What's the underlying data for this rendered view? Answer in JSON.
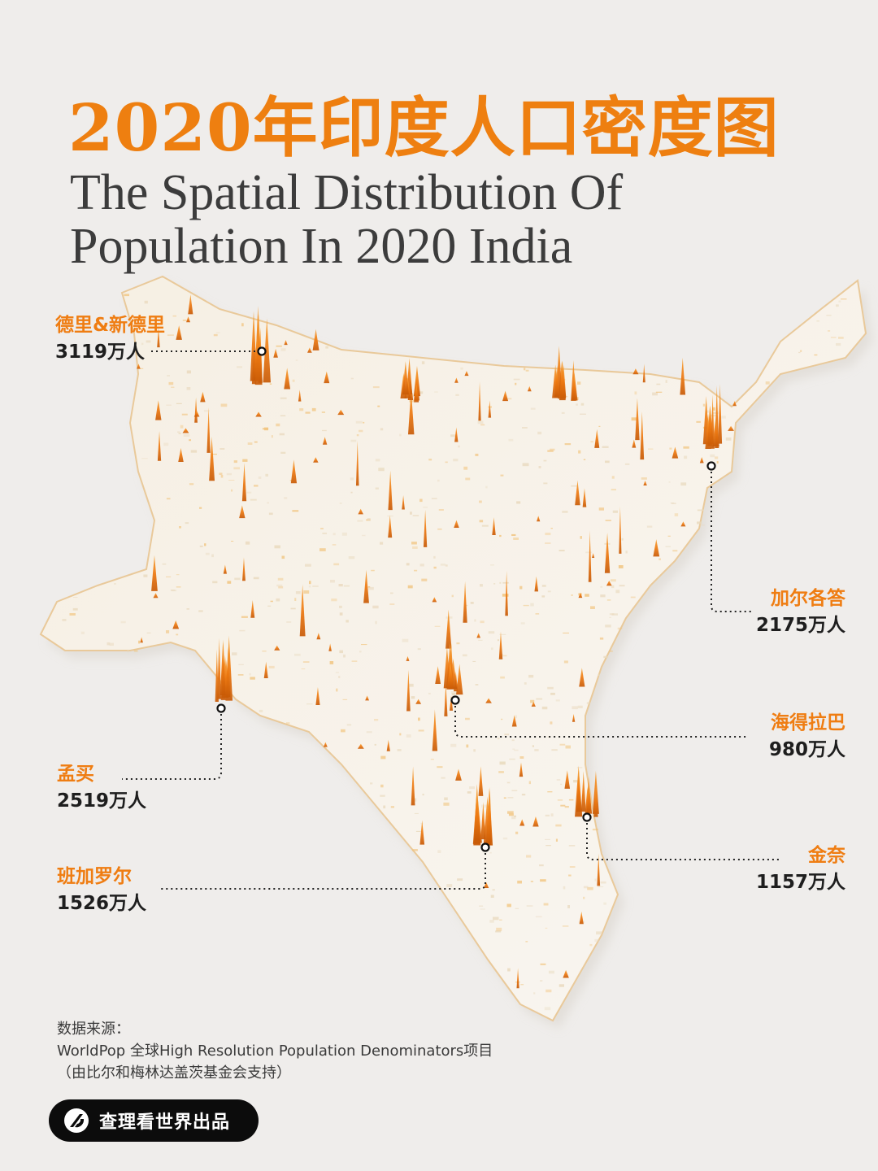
{
  "title": {
    "cn": "2020年印度人口密度图",
    "en_line1": "The Spatial Distribution Of",
    "en_line2": "Population In 2020 India"
  },
  "cities": [
    {
      "name": "德里&新德里",
      "population": "3119万人"
    },
    {
      "name": "加尔各答",
      "population": "2175万人"
    },
    {
      "name": "海得拉巴",
      "population": "980万人"
    },
    {
      "name": "孟买",
      "population": "2519万人"
    },
    {
      "name": "金奈",
      "population": "1157万人"
    },
    {
      "name": "班加罗尔",
      "population": "1526万人"
    }
  ],
  "source": {
    "label": "数据来源：",
    "line1": "WorldPop 全球High Resolution Population Denominators项目",
    "line2": "（由比尔和梅林达盖茨基金会支持）"
  },
  "brand": {
    "text": "查理看世界出品"
  },
  "colors": {
    "accent": "#ee7f10",
    "background": "#efedeb",
    "map_base": "#f7f4ef",
    "spike": "#f08a1c"
  }
}
